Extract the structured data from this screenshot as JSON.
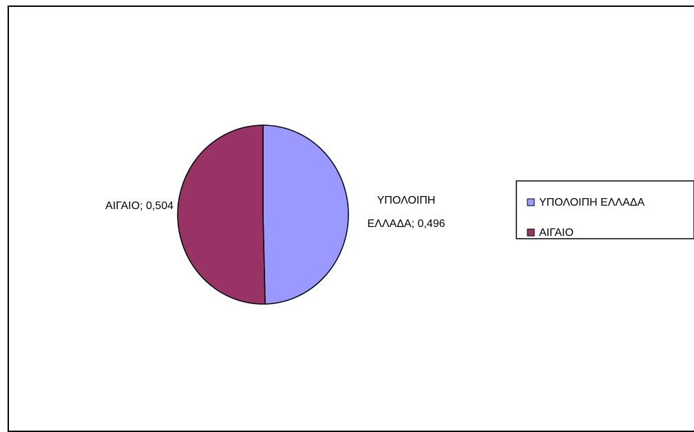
{
  "chart_data": {
    "type": "pie",
    "categories": [
      "ΥΠΟΛΟΙΠΗ ΕΛΛΑΔΑ",
      "ΑΙΓΑΙΟ"
    ],
    "values": [
      0.496,
      0.504
    ],
    "colors": [
      "#9999ff",
      "#993366"
    ],
    "data_labels": [
      {
        "line1": "ΥΠΟΛΟΙΠΗ",
        "line2": "ΕΛΛΑΔΑ; 0,496"
      },
      {
        "line1": "ΑΙΓΑΙΟ; 0,504"
      }
    ],
    "legend": {
      "placement": "right",
      "items": [
        {
          "label": "ΥΠΟΛΟΙΠΗ ΕΛΛΑΔΑ",
          "color": "#9999ff"
        },
        {
          "label": "ΑΙΓΑΙΟ",
          "color": "#993366"
        }
      ]
    }
  }
}
